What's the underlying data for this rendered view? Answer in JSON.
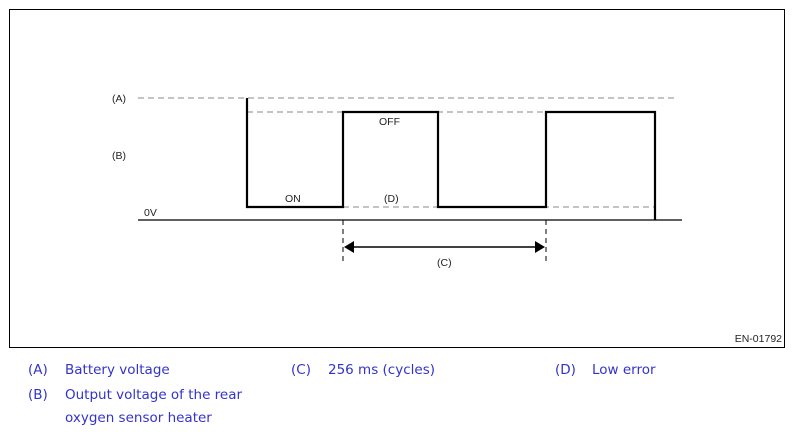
{
  "diagram": {
    "labels": {
      "a": "(A)",
      "b": "(B)",
      "zero": "0V",
      "on": "ON",
      "off": "OFF",
      "c": "(C)",
      "d": "(D)"
    },
    "figure_code": "EN-01792"
  },
  "legend": [
    {
      "key": "(A)",
      "text": "Battery voltage"
    },
    {
      "key": "(B)",
      "text": "Output voltage of the rear",
      "text2": "oxygen sensor heater"
    },
    {
      "key": "(C)",
      "text": "256 ms (cycles)"
    },
    {
      "key": "(D)",
      "text": "Low error"
    }
  ],
  "colors": {
    "legend": "#3333cc",
    "line": "#000000",
    "dash": "#888888"
  }
}
